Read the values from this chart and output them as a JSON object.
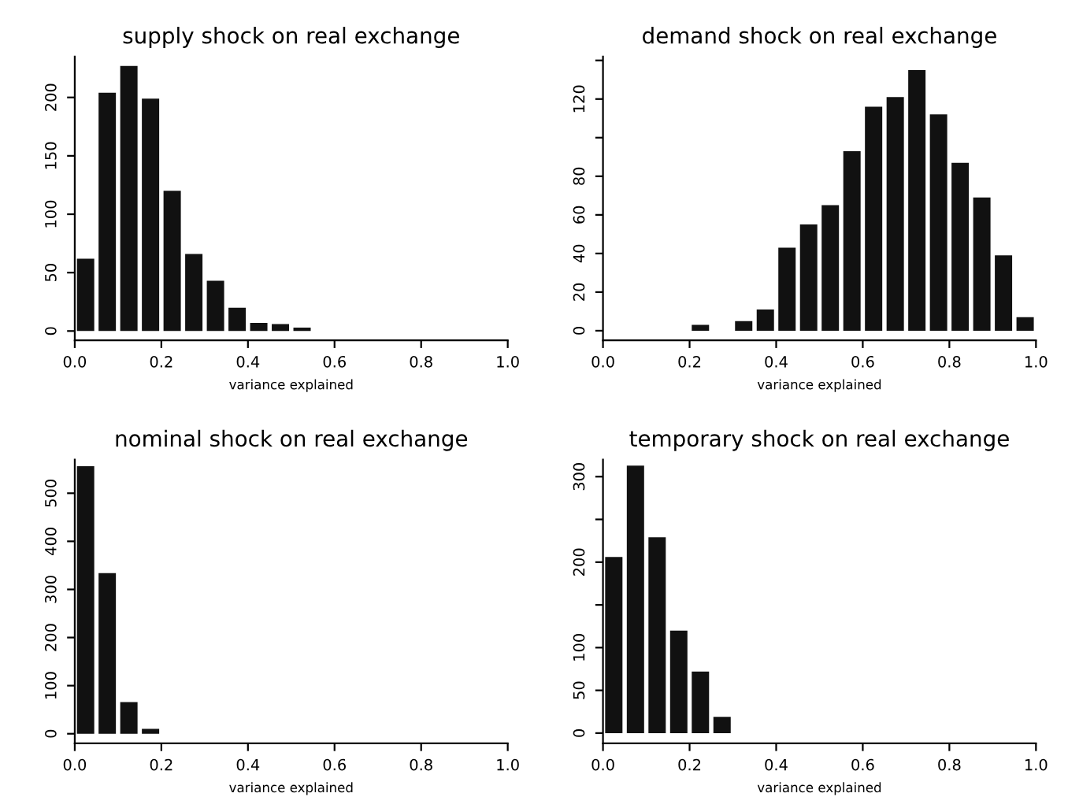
{
  "chart_data": [
    {
      "type": "histogram",
      "title": "supply shock on real exchange",
      "xlabel": "variance explained",
      "color": "#111111",
      "bins": [
        0,
        0.05,
        0.1,
        0.15,
        0.2,
        0.25,
        0.3,
        0.35,
        0.4,
        0.45,
        0.5,
        0.55,
        0.6,
        0.65,
        0.7,
        0.75,
        0.8,
        0.85,
        0.9,
        0.95,
        1.0
      ],
      "values": [
        62,
        204,
        227,
        199,
        120,
        66,
        43,
        20,
        7,
        6,
        3,
        0,
        0,
        0,
        0,
        0,
        0,
        0,
        0,
        0
      ],
      "xlim": [
        0,
        1
      ],
      "xticks": [
        {
          "value": 0,
          "label": "0.0"
        },
        {
          "value": 0.2,
          "label": "0.2"
        },
        {
          "value": 0.4,
          "label": "0.4"
        },
        {
          "value": 0.6,
          "label": "0.6"
        },
        {
          "value": 0.8,
          "label": "0.8"
        },
        {
          "value": 1,
          "label": "1.0"
        }
      ],
      "ylim": [
        -8,
        235
      ],
      "yticks": [
        0,
        50,
        100,
        150,
        200
      ],
      "grid": false
    },
    {
      "type": "histogram",
      "title": "demand shock on real exchange",
      "xlabel": "variance explained",
      "color": "#111111",
      "bins": [
        0,
        0.05,
        0.1,
        0.15,
        0.2,
        0.25,
        0.3,
        0.35,
        0.4,
        0.45,
        0.5,
        0.55,
        0.6,
        0.65,
        0.7,
        0.75,
        0.8,
        0.85,
        0.9,
        0.95,
        1.0
      ],
      "values": [
        0,
        0,
        0,
        0,
        3,
        0,
        5,
        11,
        43,
        55,
        65,
        93,
        116,
        121,
        135,
        112,
        87,
        69,
        39,
        7
      ],
      "xlim": [
        0,
        1
      ],
      "xticks": [
        {
          "value": 0,
          "label": "0.0"
        },
        {
          "value": 0.2,
          "label": "0.2"
        },
        {
          "value": 0.4,
          "label": "0.4"
        },
        {
          "value": 0.6,
          "label": "0.6"
        },
        {
          "value": 0.8,
          "label": "0.8"
        },
        {
          "value": 1,
          "label": "1.0"
        }
      ],
      "ylim": [
        -5,
        142
      ],
      "yticks": [
        0,
        20,
        40,
        60,
        80,
        {
          "value": 100,
          "label": null
        },
        120,
        {
          "value": 140,
          "label": null
        }
      ],
      "grid": false
    },
    {
      "type": "histogram",
      "title": "nominal shock on real exchange",
      "xlabel": "variance explained",
      "color": "#111111",
      "bins": [
        0,
        0.05,
        0.1,
        0.15,
        0.2,
        0.25,
        0.3,
        0.35,
        0.4,
        0.45,
        0.5,
        0.55,
        0.6,
        0.65,
        0.7,
        0.75,
        0.8,
        0.85,
        0.9,
        0.95,
        1.0
      ],
      "values": [
        556,
        334,
        66,
        10,
        0,
        0,
        0,
        0,
        0,
        0,
        0,
        0,
        0,
        0,
        0,
        0,
        0,
        0,
        0,
        0
      ],
      "xlim": [
        0,
        1
      ],
      "xticks": [
        {
          "value": 0,
          "label": "0.0"
        },
        {
          "value": 0.2,
          "label": "0.2"
        },
        {
          "value": 0.4,
          "label": "0.4"
        },
        {
          "value": 0.6,
          "label": "0.6"
        },
        {
          "value": 0.8,
          "label": "0.8"
        },
        {
          "value": 1,
          "label": "1.0"
        }
      ],
      "ylim": [
        -20,
        570
      ],
      "yticks": [
        0,
        100,
        200,
        300,
        400,
        500
      ],
      "grid": false
    },
    {
      "type": "histogram",
      "title": "temporary shock on real exchange",
      "xlabel": "variance explained",
      "color": "#111111",
      "bins": [
        0,
        0.05,
        0.1,
        0.15,
        0.2,
        0.25,
        0.3,
        0.35,
        0.4,
        0.45,
        0.5,
        0.55,
        0.6,
        0.65,
        0.7,
        0.75,
        0.8,
        0.85,
        0.9,
        0.95,
        1.0
      ],
      "values": [
        206,
        313,
        229,
        120,
        72,
        19,
        0,
        0,
        0,
        0,
        0,
        0,
        0,
        0,
        0,
        0,
        0,
        0,
        0,
        0
      ],
      "xlim": [
        0,
        1
      ],
      "xticks": [
        {
          "value": 0,
          "label": "0.0"
        },
        {
          "value": 0.2,
          "label": "0.2"
        },
        {
          "value": 0.4,
          "label": "0.4"
        },
        {
          "value": 0.6,
          "label": "0.6"
        },
        {
          "value": 0.8,
          "label": "0.8"
        },
        {
          "value": 1,
          "label": "1.0"
        }
      ],
      "ylim": [
        -12,
        320
      ],
      "yticks": [
        0,
        50,
        100,
        {
          "value": 150,
          "label": null
        },
        200,
        {
          "value": 250,
          "label": null
        },
        300
      ],
      "grid": false
    }
  ]
}
